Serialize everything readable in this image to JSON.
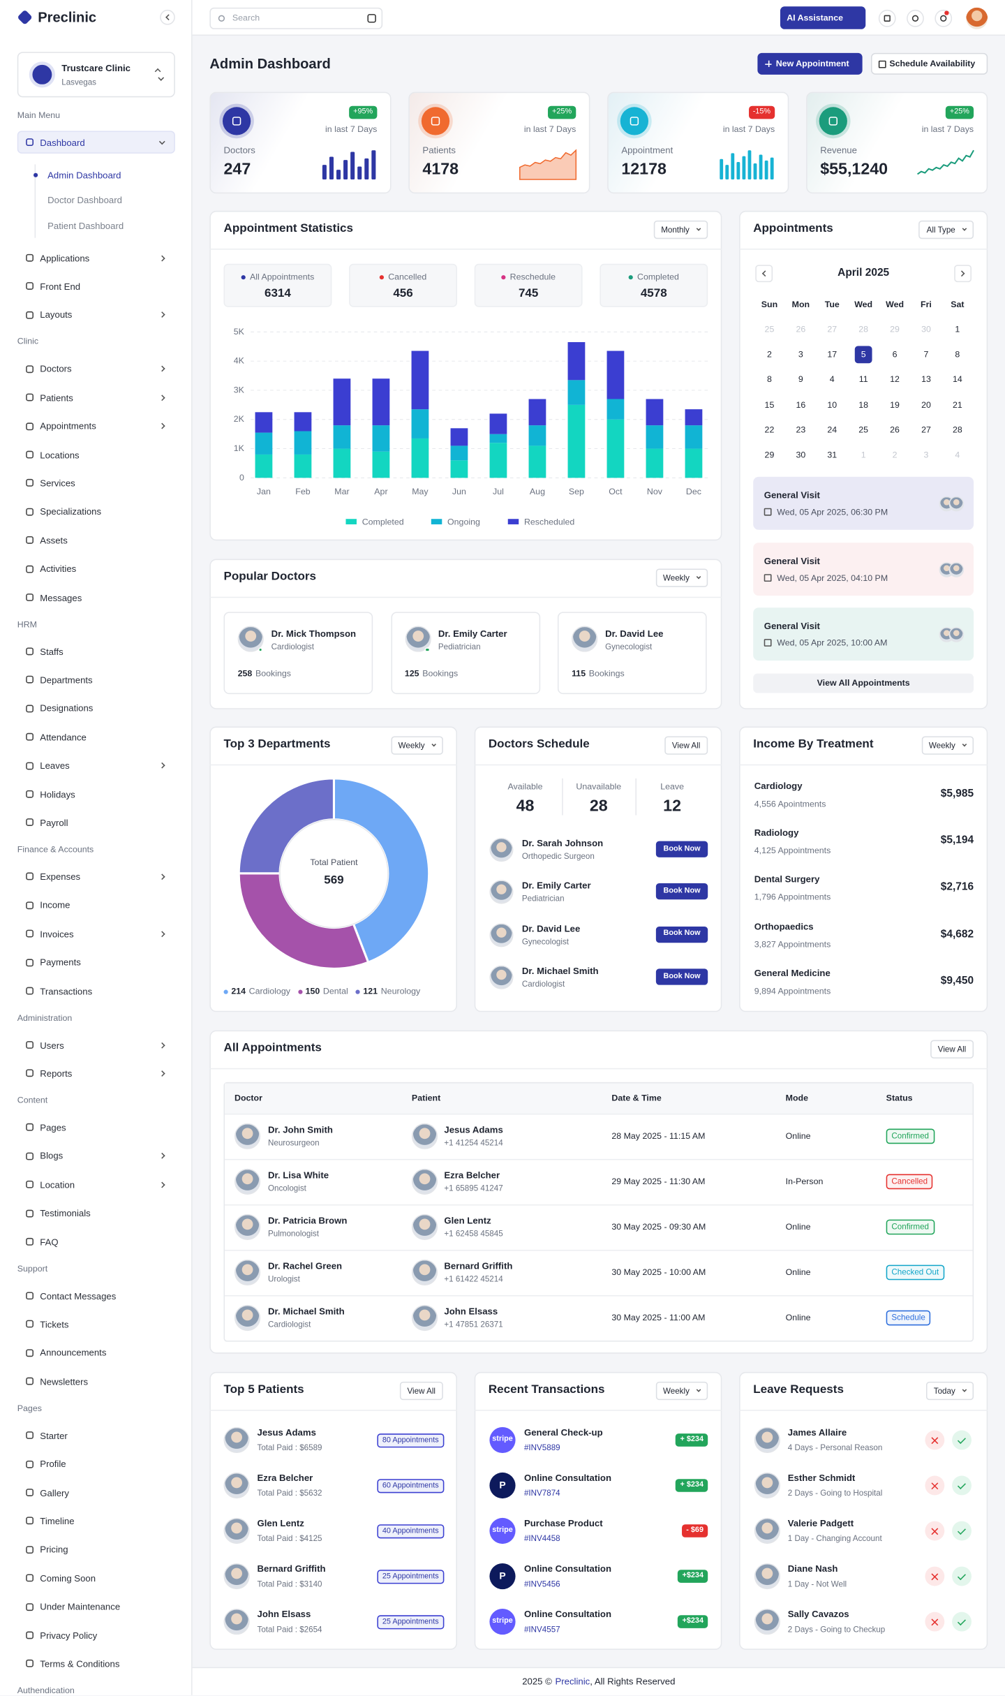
{
  "sidebar": {
    "brand": "Preclinic",
    "clinic": {
      "name": "Trustcare Clinic",
      "location": "Lasvegas"
    },
    "sections": [
      {
        "title": "Main Menu",
        "items": [
          {
            "label": "Dashboard",
            "expandable": true,
            "active": true,
            "children": [
              "Admin Dashboard",
              "Doctor Dashboard",
              "Patient Dashboard"
            ]
          },
          {
            "label": "Applications",
            "expandable": true
          },
          {
            "label": "Front End"
          },
          {
            "label": "Layouts",
            "expandable": true
          }
        ]
      },
      {
        "title": "Clinic",
        "items": [
          {
            "label": "Doctors",
            "expandable": true
          },
          {
            "label": "Patients",
            "expandable": true
          },
          {
            "label": "Appointments",
            "expandable": true
          },
          {
            "label": "Locations"
          },
          {
            "label": "Services"
          },
          {
            "label": "Specializations"
          },
          {
            "label": "Assets"
          },
          {
            "label": "Activities"
          },
          {
            "label": "Messages"
          }
        ]
      },
      {
        "title": "HRM",
        "items": [
          {
            "label": "Staffs"
          },
          {
            "label": "Departments"
          },
          {
            "label": "Designations"
          },
          {
            "label": "Attendance"
          },
          {
            "label": "Leaves",
            "expandable": true
          },
          {
            "label": "Holidays"
          },
          {
            "label": "Payroll"
          }
        ]
      },
      {
        "title": "Finance & Accounts",
        "items": [
          {
            "label": "Expenses",
            "expandable": true
          },
          {
            "label": "Income"
          },
          {
            "label": "Invoices",
            "expandable": true
          },
          {
            "label": "Payments"
          },
          {
            "label": "Transactions"
          }
        ]
      },
      {
        "title": "Administration",
        "items": [
          {
            "label": "Users",
            "expandable": true
          },
          {
            "label": "Reports",
            "expandable": true
          }
        ]
      },
      {
        "title": "Content",
        "items": [
          {
            "label": "Pages"
          },
          {
            "label": "Blogs",
            "expandable": true
          },
          {
            "label": "Location",
            "expandable": true
          },
          {
            "label": "Testimonials"
          },
          {
            "label": "FAQ"
          }
        ]
      },
      {
        "title": "Support",
        "items": [
          {
            "label": "Contact Messages"
          },
          {
            "label": "Tickets"
          },
          {
            "label": "Announcements"
          },
          {
            "label": "Newsletters"
          }
        ]
      },
      {
        "title": "Pages",
        "items": [
          {
            "label": "Starter"
          },
          {
            "label": "Profile"
          },
          {
            "label": "Gallery"
          },
          {
            "label": "Timeline"
          },
          {
            "label": "Pricing"
          },
          {
            "label": "Coming Soon"
          },
          {
            "label": "Under Maintenance"
          },
          {
            "label": "Privacy Policy"
          },
          {
            "label": "Terms & Conditions"
          }
        ]
      },
      {
        "title": "Authendication",
        "items": []
      }
    ]
  },
  "header": {
    "search": "Search",
    "ai_button": "AI Assistance"
  },
  "page": {
    "title": "Admin Dashboard",
    "buttons": [
      "New Appointment",
      "Schedule Availability"
    ]
  },
  "stats": [
    {
      "label": "Doctors",
      "value": 247,
      "change": "+95%",
      "change_color": "#22a55b",
      "period": "in last 7 Days",
      "color": "#2e37a4",
      "trend_type": "bar",
      "trend": [
        9,
        14,
        6,
        12,
        17,
        8,
        13,
        18
      ]
    },
    {
      "label": "Patients",
      "value": 4178,
      "change": "+25%",
      "change_color": "#22a55b",
      "period": "in last 7 Days",
      "color": "#f06a2f",
      "trend_type": "area",
      "trend": [
        10,
        12,
        11,
        14,
        13,
        16,
        15,
        18,
        17,
        22,
        20,
        24
      ]
    },
    {
      "label": "Appointment",
      "value": 12178,
      "change": "-15%",
      "change_color": "#e5312f",
      "period": "in last 7 Days",
      "color": "#17b3d4",
      "trend_type": "bar",
      "trend": [
        14,
        10,
        18,
        12,
        16,
        20,
        11,
        17,
        13,
        15
      ]
    },
    {
      "label": "Revenue",
      "value": "$55,1240",
      "change": "+25%",
      "change_color": "#22a55b",
      "period": "in last 7 Days",
      "color": "#1b9c7c",
      "trend_type": "line",
      "trend": [
        4,
        6,
        5,
        8,
        7,
        9,
        8,
        11,
        10,
        13,
        12,
        16,
        14,
        18,
        17,
        22
      ]
    }
  ],
  "appointment_summary": {
    "filter": "Monthly",
    "items": [
      {
        "label": "All Appointments",
        "value": 6314,
        "color": "#2e37a4"
      },
      {
        "label": "Cancelled",
        "value": 456,
        "color": "#e5312f"
      },
      {
        "label": "Reschedule",
        "value": 745,
        "color": "#d63384"
      },
      {
        "label": "Completed",
        "value": 4578,
        "color": "#1b9c7c"
      }
    ]
  },
  "chart_data": [
    {
      "type": "bar",
      "stacked": true,
      "title": "Appointment Statistics",
      "categories": [
        "Jan",
        "Feb",
        "Mar",
        "Apr",
        "May",
        "Jun",
        "Jul",
        "Aug",
        "Sep",
        "Oct",
        "Nov",
        "Dec"
      ],
      "series": [
        {
          "name": "Completed",
          "color": "#13d6c1",
          "values": [
            800,
            800,
            1000,
            900,
            1350,
            600,
            1200,
            1100,
            2500,
            2000,
            1000,
            1000
          ]
        },
        {
          "name": "Ongoing",
          "color": "#11b4d4",
          "values": [
            750,
            800,
            800,
            900,
            1000,
            500,
            300,
            700,
            850,
            700,
            800,
            800
          ]
        },
        {
          "name": "Rescheduled",
          "color": "#3b3ed1",
          "values": [
            700,
            650,
            1600,
            1600,
            2000,
            600,
            700,
            900,
            1300,
            1650,
            900,
            550
          ]
        }
      ],
      "ylim": [
        0,
        5000
      ],
      "yticks": [
        0,
        {
          "value": 1000,
          "label": "1K"
        },
        {
          "value": 2000,
          "label": "2K"
        },
        {
          "value": 3000,
          "label": "3K"
        },
        {
          "value": 4000,
          "label": "4K"
        },
        {
          "value": 5000,
          "label": "5K"
        }
      ],
      "grid": true
    },
    {
      "type": "donut",
      "title": "Top 3 Departments",
      "filter": "Weekly",
      "center_label": "Total Patient",
      "center_value": 569,
      "categories": [
        "Cardiology",
        "Dental",
        "Neurology"
      ],
      "values": [
        214,
        150,
        121
      ],
      "colors": [
        "#6ea8f5",
        "#a552aa",
        "#6c6fc9"
      ]
    }
  ],
  "popular_doctors": {
    "title": "Popular Doctors",
    "filter": "Weekly",
    "doctors": [
      {
        "name": "Dr. Mick Thompson",
        "specialty": "Cardiologist",
        "bookings": 258,
        "bookings_label": "Bookings"
      },
      {
        "name": "Dr. Emily Carter",
        "specialty": "Pediatrician",
        "bookings": 125,
        "bookings_label": "Bookings"
      },
      {
        "name": "Dr. David Lee",
        "specialty": "Gynecologist",
        "bookings": 115,
        "bookings_label": "Bookings"
      }
    ]
  },
  "calendar": {
    "title": "Appointments",
    "filter": "All Type",
    "month": "April 2025",
    "weekdays": [
      "Sun",
      "Mon",
      "Tue",
      "Wed",
      "Wed",
      "Fri",
      "Sat"
    ],
    "weeks": [
      [
        {
          "value": 25,
          "muted": true
        },
        {
          "value": 26,
          "muted": true
        },
        {
          "value": 27,
          "muted": true
        },
        {
          "value": 28,
          "muted": true
        },
        {
          "value": 29,
          "muted": true
        },
        {
          "value": 30,
          "muted": true
        },
        1
      ],
      [
        2,
        3,
        17,
        {
          "value": 5,
          "selected": true
        },
        6,
        7,
        8
      ],
      [
        8,
        9,
        4,
        11,
        12,
        13,
        14
      ],
      [
        15,
        16,
        10,
        18,
        19,
        20,
        21
      ],
      [
        22,
        23,
        24,
        25,
        26,
        27,
        28
      ],
      [
        29,
        30,
        31,
        {
          "value": 1,
          "muted": true
        },
        {
          "value": 2,
          "muted": true
        },
        {
          "value": 3,
          "muted": true
        },
        {
          "value": 4,
          "muted": true
        }
      ]
    ],
    "visits": [
      {
        "title": "General Visit",
        "time": "Wed, 05 Apr 2025, 06:30 PM",
        "color": "#e9e9f6"
      },
      {
        "title": "General Visit",
        "time": "Wed, 05 Apr 2025, 04:10 PM",
        "color": "#fcf0f1"
      },
      {
        "title": "General Visit",
        "time": "Wed, 05 Apr 2025, 10:00 AM",
        "color": "#e8f4f2"
      }
    ],
    "view_all": "View All Appointments"
  },
  "doctors_schedule": {
    "title": "Doctors Schedule",
    "action": "View All",
    "stats": [
      {
        "label": "Available",
        "value": 48
      },
      {
        "label": "Unavailable",
        "value": 28
      },
      {
        "label": "Leave",
        "value": 12
      }
    ],
    "doctors": [
      {
        "name": "Dr. Sarah Johnson",
        "specialty": "Orthopedic Surgeon"
      },
      {
        "name": "Dr. Emily Carter",
        "specialty": "Pediatrician"
      },
      {
        "name": "Dr. David Lee",
        "specialty": "Gynecologist"
      },
      {
        "name": "Dr. Michael Smith",
        "specialty": "Cardiologist"
      }
    ],
    "button": "Book Now"
  },
  "income": {
    "title": "Income By Treatment",
    "filter": "Weekly",
    "items": [
      {
        "name": "Cardiology",
        "appointments": "4,556 Apointments",
        "amount": "$5,985"
      },
      {
        "name": "Radiology",
        "appointments": "4,125 Appointments",
        "amount": "$5,194"
      },
      {
        "name": "Dental Surgery",
        "appointments": "1,796 Appointments",
        "amount": "$2,716"
      },
      {
        "name": "Orthopaedics",
        "appointments": "3,827 Appointments",
        "amount": "$4,682"
      },
      {
        "name": "General Medicine",
        "appointments": "9,894 Appointments",
        "amount": "$9,450"
      }
    ]
  },
  "all_appointments": {
    "title": "All Appointments",
    "action": "View All",
    "columns": [
      "Doctor",
      "Patient",
      "Date & Time",
      "Mode",
      "Status"
    ],
    "rows": [
      {
        "doctor": "Dr. John Smith",
        "doctor_role": "Neurosurgeon",
        "patient": "Jesus Adams",
        "phone": "+1 41254 45214",
        "datetime": "28 May 2025 - 11:15 AM",
        "mode": "Online",
        "status": "Confirmed",
        "status_color": "#22a55b"
      },
      {
        "doctor": "Dr. Lisa White",
        "doctor_role": "Oncologist",
        "patient": "Ezra Belcher",
        "phone": "+1 65895 41247",
        "datetime": "29 May 2025 - 11:30 AM",
        "mode": "In-Person",
        "status": "Cancelled",
        "status_color": "#e5312f"
      },
      {
        "doctor": "Dr. Patricia Brown",
        "doctor_role": "Pulmonologist",
        "patient": "Glen Lentz",
        "phone": "+1 62458 45845",
        "datetime": "30 May 2025 - 09:30 AM",
        "mode": "Online",
        "status": "Confirmed",
        "status_color": "#22a55b"
      },
      {
        "doctor": "Dr. Rachel Green",
        "doctor_role": "Urologist",
        "patient": "Bernard Griffith",
        "phone": "+1 61422 45214",
        "datetime": "30 May 2025 - 10:00 AM",
        "mode": "Online",
        "status": "Checked Out",
        "status_color": "#12a5c9"
      },
      {
        "doctor": "Dr. Michael Smith",
        "doctor_role": "Cardiologist",
        "patient": "John Elsass",
        "phone": "+1 47851 26371",
        "datetime": "30 May 2025 - 11:00 AM",
        "mode": "Online",
        "status": "Schedule",
        "status_color": "#2f6fdc"
      }
    ]
  },
  "top_patients": {
    "title": "Top 5 Patients",
    "action": "View All",
    "rows": [
      {
        "name": "Jesus Adams",
        "paid": "Total Paid : $6589",
        "appointments": "80 Appointments"
      },
      {
        "name": "Ezra Belcher",
        "paid": "Total Paid : $5632",
        "appointments": "60 Appointments"
      },
      {
        "name": "Glen Lentz",
        "paid": "Total Paid : $4125",
        "appointments": "40 Appointments"
      },
      {
        "name": "Bernard Griffith",
        "paid": "Total Paid : $3140",
        "appointments": "25 Appointments"
      },
      {
        "name": "John Elsass",
        "paid": "Total Paid : $2654",
        "appointments": "25 Appointments"
      }
    ]
  },
  "transactions": {
    "title": "Recent Transactions",
    "filter": "Weekly",
    "rows": [
      {
        "title": "General Check-up",
        "invoice": "#INV5889",
        "amount": "+ $234",
        "color": "#22a55b",
        "logo": "stripe",
        "logo_color": "#635bff"
      },
      {
        "title": "Online Consultation",
        "invoice": "#INV7874",
        "amount": "+ $234",
        "color": "#22a55b",
        "logo": "P",
        "logo_color": "#0d1a5c"
      },
      {
        "title": "Purchase Product",
        "invoice": "#INV4458",
        "amount": "- $69",
        "color": "#e5312f",
        "logo": "stripe",
        "logo_color": "#635bff"
      },
      {
        "title": "Online Consultation",
        "invoice": "#INV5456",
        "amount": "+$234",
        "color": "#22a55b",
        "logo": "P",
        "logo_color": "#0d1a5c"
      },
      {
        "title": "Online Consultation",
        "invoice": "#INV4557",
        "amount": "+$234",
        "color": "#22a55b",
        "logo": "stripe",
        "logo_color": "#635bff"
      }
    ]
  },
  "leave_requests": {
    "title": "Leave Requests",
    "filter": "Today",
    "rows": [
      {
        "name": "James Allaire",
        "detail": "4 Days - Personal Reason"
      },
      {
        "name": "Esther Schmidt",
        "detail": "2 Days - Going to Hospital"
      },
      {
        "name": "Valerie Padgett",
        "detail": "1 Day - Changing Account"
      },
      {
        "name": "Diane Nash",
        "detail": "1 Day - Not Well"
      },
      {
        "name": "Sally Cavazos",
        "detail": "2 Days - Going to Checkup"
      }
    ]
  },
  "footer": {
    "year": "2025 ©",
    "brand": "Preclinic",
    "rights": ", All Rights Reserved"
  }
}
